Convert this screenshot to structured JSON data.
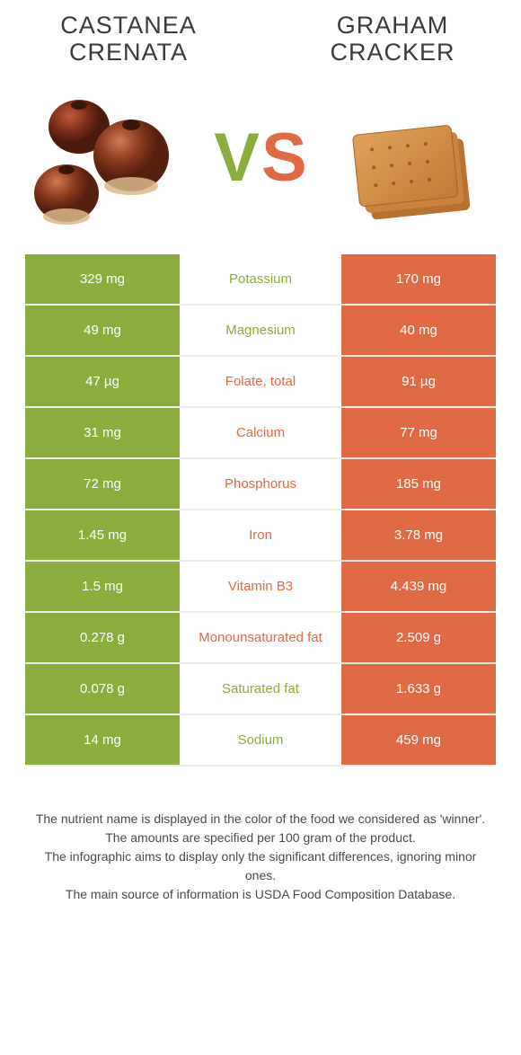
{
  "colors": {
    "food1_accent": "#8aad3e",
    "food2_accent": "#e06a45",
    "row_border": "#ececec",
    "title_text": "#3a3a3a",
    "footer_text": "#4a4a4a",
    "background": "#ffffff"
  },
  "food1": {
    "name": "Castanea crenata",
    "image_alt": "chestnuts"
  },
  "food2": {
    "name": "Graham cracker",
    "image_alt": "graham-crackers"
  },
  "vs": {
    "letter1": "V",
    "letter2": "S"
  },
  "rows": [
    {
      "nutrient": "Potassium",
      "left": "329 mg",
      "right": "170 mg",
      "winner": "food1"
    },
    {
      "nutrient": "Magnesium",
      "left": "49 mg",
      "right": "40 mg",
      "winner": "food1"
    },
    {
      "nutrient": "Folate, total",
      "left": "47 µg",
      "right": "91 µg",
      "winner": "food2"
    },
    {
      "nutrient": "Calcium",
      "left": "31 mg",
      "right": "77 mg",
      "winner": "food2"
    },
    {
      "nutrient": "Phosphorus",
      "left": "72 mg",
      "right": "185 mg",
      "winner": "food2"
    },
    {
      "nutrient": "Iron",
      "left": "1.45 mg",
      "right": "3.78 mg",
      "winner": "food2"
    },
    {
      "nutrient": "Vitamin B3",
      "left": "1.5 mg",
      "right": "4.439 mg",
      "winner": "food2"
    },
    {
      "nutrient": "Monounsaturated fat",
      "left": "0.278 g",
      "right": "2.509 g",
      "winner": "food2"
    },
    {
      "nutrient": "Saturated fat",
      "left": "0.078 g",
      "right": "1.633 g",
      "winner": "food1"
    },
    {
      "nutrient": "Sodium",
      "left": "14 mg",
      "right": "459 mg",
      "winner": "food1"
    }
  ],
  "footer": {
    "line1": "The nutrient name is displayed in the color of the food we considered as 'winner'.",
    "line2": "The amounts are specified per 100 gram of the product.",
    "line3": "The infographic aims to display only the significant differences, ignoring minor ones.",
    "line4": "The main source of information is USDA Food Composition Database."
  }
}
